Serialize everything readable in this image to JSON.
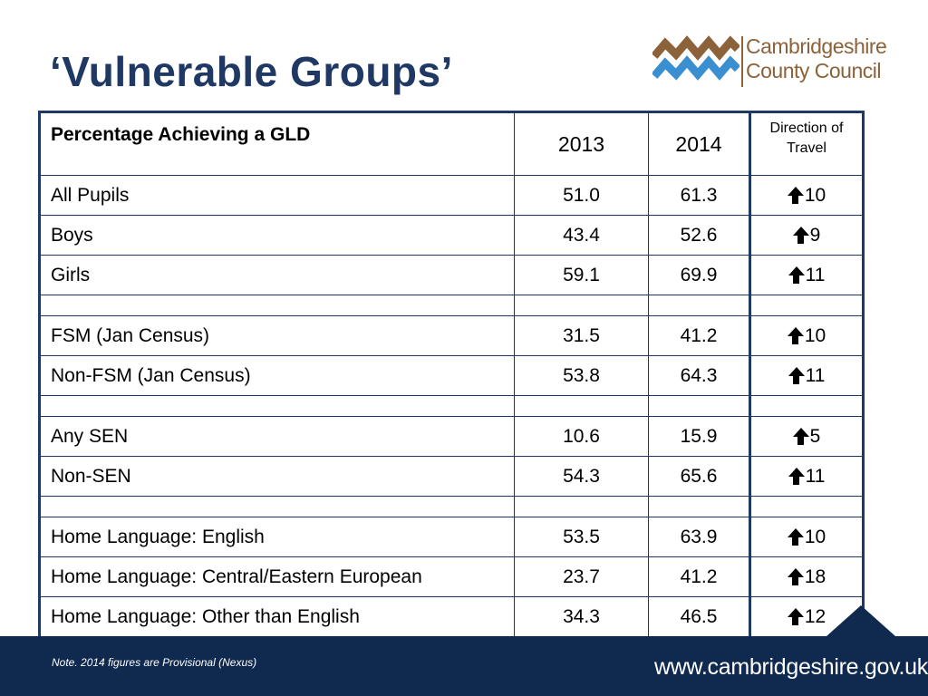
{
  "title": "‘Vulnerable Groups’",
  "logo": {
    "line1": "Cambridgeshire",
    "line2": "County Council"
  },
  "table": {
    "header": {
      "label": "Percentage Achieving a  GLD",
      "col2013": "2013",
      "col2014": "2014",
      "direction": "Direction of Travel"
    },
    "rows": [
      {
        "label": "All Pupils",
        "y2013": "51.0",
        "y2014": "61.3",
        "change": "10"
      },
      {
        "label": "Boys",
        "y2013": "43.4",
        "y2014": "52.6",
        "change": "9"
      },
      {
        "label": "Girls",
        "y2013": "59.1",
        "y2014": "69.9",
        "change": "11"
      },
      {
        "label": "FSM (Jan Census)",
        "y2013": "31.5",
        "y2014": "41.2",
        "change": "10"
      },
      {
        "label": "Non-FSM (Jan Census)",
        "y2013": "53.8",
        "y2014": "64.3",
        "change": "11"
      },
      {
        "label": "Any SEN",
        "y2013": "10.6",
        "y2014": "15.9",
        "change": "5"
      },
      {
        "label": "Non-SEN",
        "y2013": "54.3",
        "y2014": "65.6",
        "change": "11"
      },
      {
        "label": "Home Language: English",
        "y2013": "53.5",
        "y2014": "63.9",
        "change": "10"
      },
      {
        "label": "Home Language: Central/Eastern European",
        "y2013": "23.7",
        "y2014": "41.2",
        "change": "18"
      },
      {
        "label": "Home Language: Other than English",
        "y2013": "34.3",
        "y2014": "46.5",
        "change": "12"
      }
    ],
    "trend_icon": "up-arrow-icon"
  },
  "footer": {
    "note": "Note. 2014 figures are Provisional (Nexus)",
    "url": "www.cambridgeshire.gov.uk"
  },
  "colors": {
    "title": "#1f3864",
    "footer": "#0f2a4e",
    "logo_brown": "#8b6239",
    "logo_blue": "#3a8fd0"
  }
}
